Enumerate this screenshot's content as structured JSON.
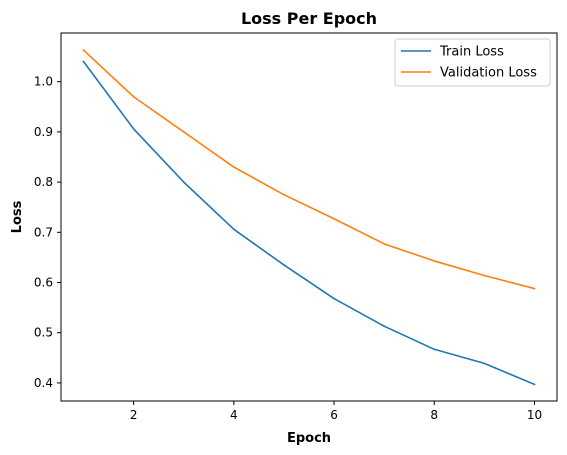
{
  "chart_data": {
    "type": "line",
    "title": "Loss Per Epoch",
    "xlabel": "Epoch",
    "ylabel": "Loss",
    "x": [
      1,
      2,
      3,
      4,
      5,
      6,
      7,
      8,
      9,
      10
    ],
    "xlim": [
      0.55,
      10.45
    ],
    "ylim": [
      0.364,
      1.097
    ],
    "xticks": [
      2,
      4,
      6,
      8,
      10
    ],
    "yticks": [
      0.4,
      0.5,
      0.6,
      0.7,
      0.8,
      0.9,
      1.0
    ],
    "grid": false,
    "legend_position": "top-right",
    "series": [
      {
        "name": "Train Loss",
        "color": "#1f77b4",
        "values": [
          1.04,
          0.906,
          0.8,
          0.706,
          0.635,
          0.568,
          0.513,
          0.467,
          0.439,
          0.397
        ]
      },
      {
        "name": "Validation Loss",
        "color": "#ff7f0e",
        "values": [
          1.063,
          0.97,
          0.9,
          0.83,
          0.775,
          0.727,
          0.677,
          0.643,
          0.614,
          0.588
        ]
      }
    ]
  }
}
